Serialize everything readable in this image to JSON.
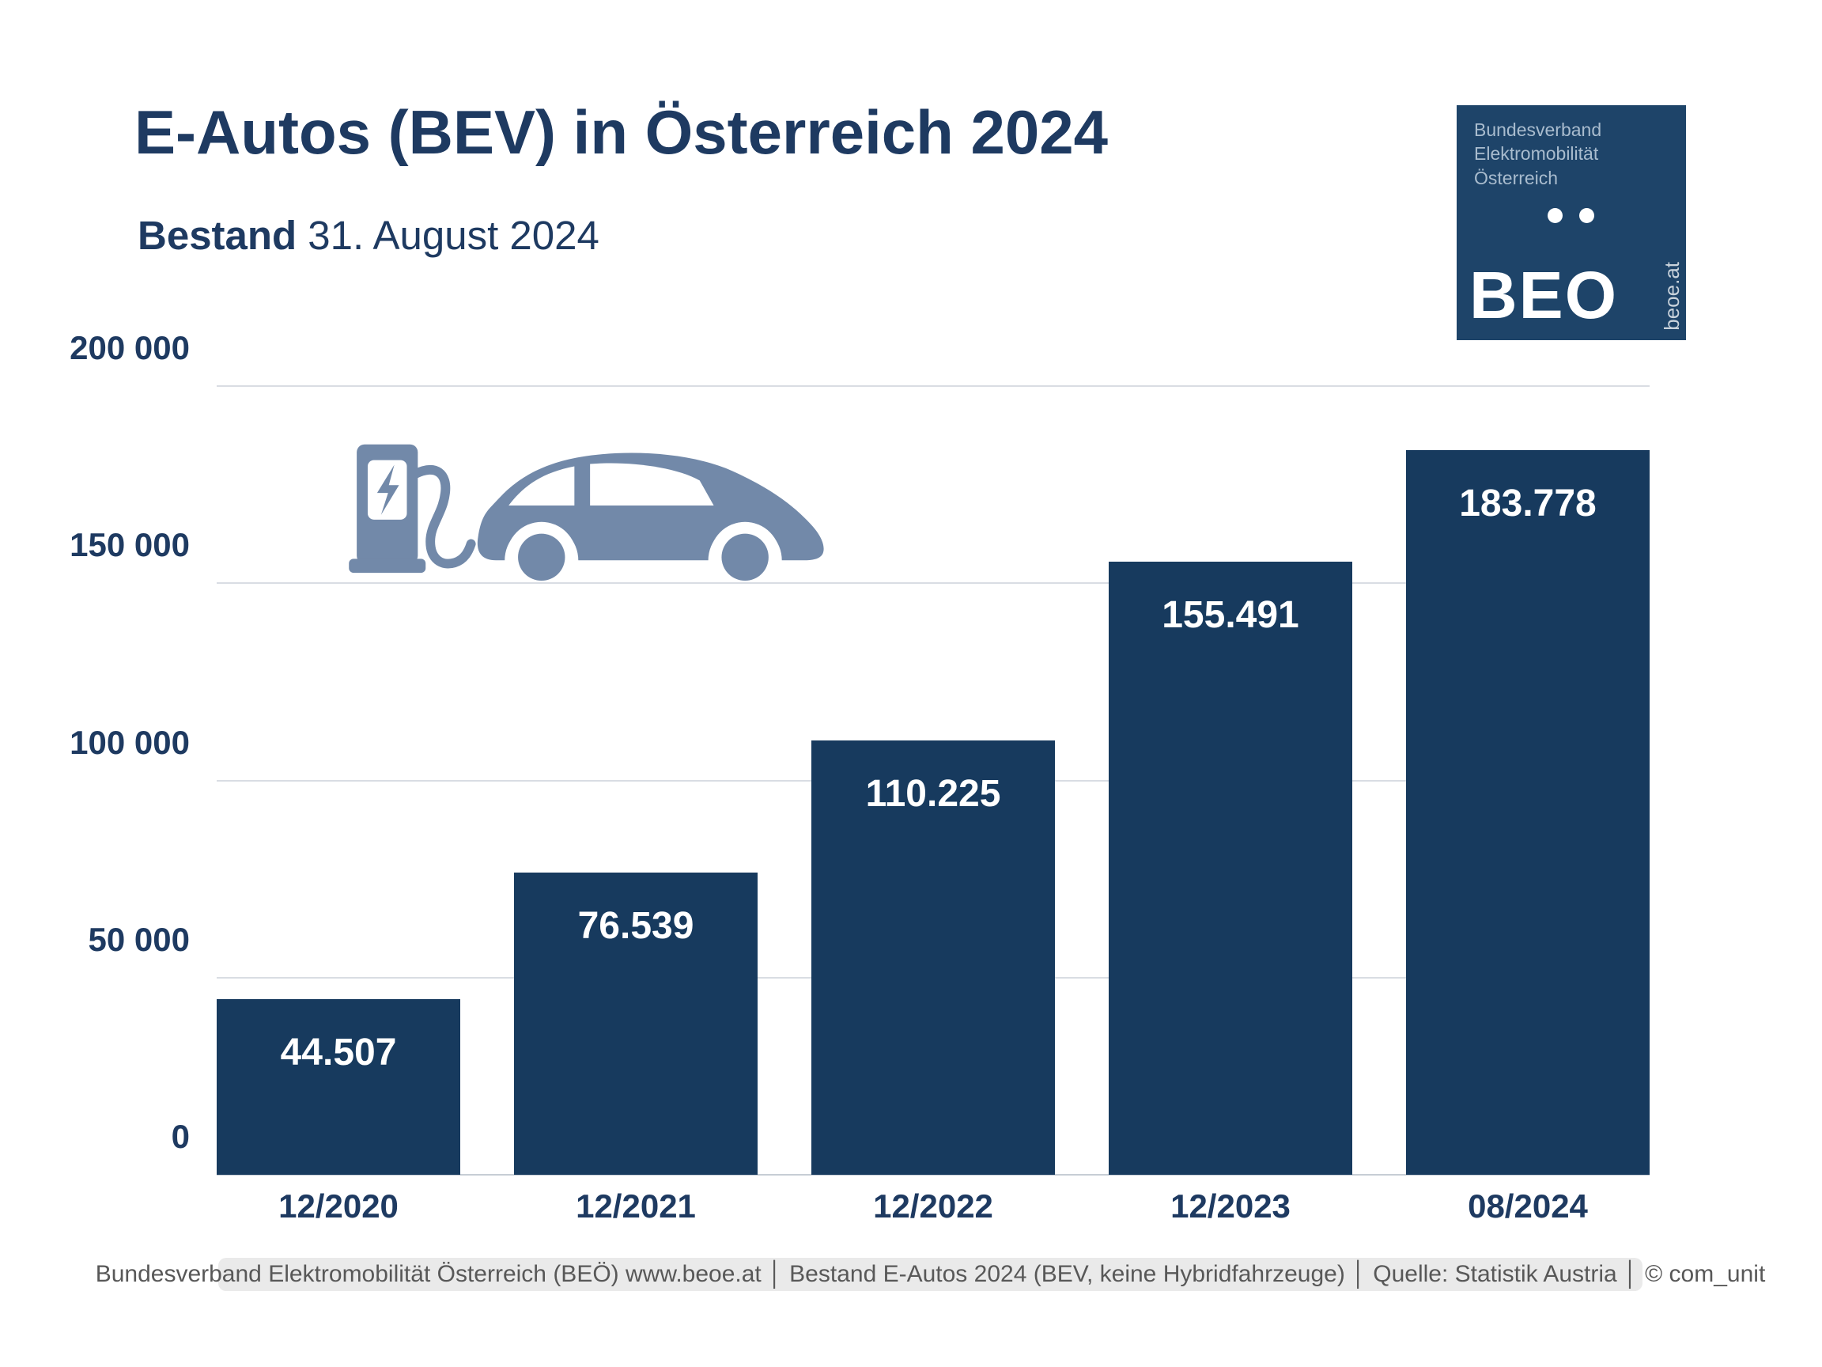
{
  "header": {
    "title": "E-Autos (BEV) in Österreich 2024",
    "subtitle_bold": "Bestand",
    "subtitle_date": "31. August 2024"
  },
  "logo": {
    "org_line1": "Bundesverband",
    "org_line2": "Elektromobilität",
    "org_line3": "Österreich",
    "acronym": "BEO",
    "website": "beoe.at",
    "bg_color": "#1E4469"
  },
  "chart_data": {
    "type": "bar",
    "categories": [
      "12/2020",
      "12/2021",
      "12/2022",
      "12/2023",
      "08/2024"
    ],
    "values": [
      44507,
      76539,
      110225,
      155491,
      183778
    ],
    "value_labels": [
      "44.507",
      "76.539",
      "110.225",
      "155.491",
      "183.778"
    ],
    "y_ticks": [
      {
        "value": 0,
        "label": "0"
      },
      {
        "value": 50000,
        "label": "50 000"
      },
      {
        "value": 100000,
        "label": "100 000"
      },
      {
        "value": 150000,
        "label": "150 000"
      },
      {
        "value": 200000,
        "label": "200 000"
      }
    ],
    "ylim": [
      0,
      200000
    ],
    "xlabel": "",
    "ylabel": "",
    "grid": true,
    "legend": "none",
    "bar_color": "#173A5E",
    "icon_color": "#7289A9"
  },
  "footer": {
    "text": "Bundesverband Elektromobilität Österreich (BEÖ) www.beoe.at │ Bestand E-Autos 2024 (BEV, keine Hybridfahrzeuge) │ Quelle: Statistik Austria │ © com_unit"
  }
}
